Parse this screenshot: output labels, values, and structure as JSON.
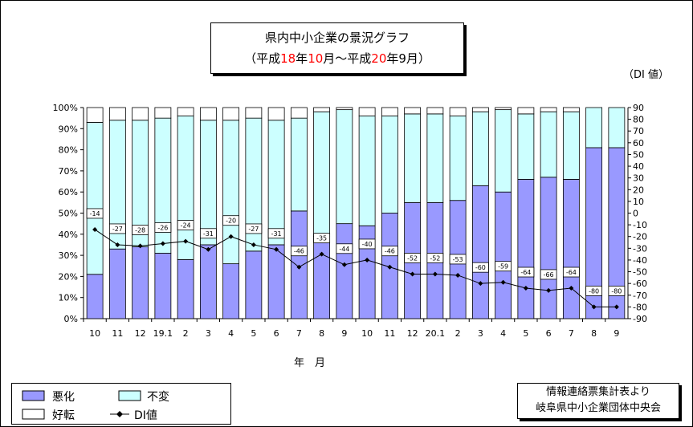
{
  "title": {
    "line1": "県内中小企業の景況グラフ",
    "line2_parts": [
      {
        "text": "（平成",
        "red": false
      },
      {
        "text": "18",
        "red": true
      },
      {
        "text": "年",
        "red": false
      },
      {
        "text": "10",
        "red": true
      },
      {
        "text": "月～平成",
        "red": false
      },
      {
        "text": "20",
        "red": true
      },
      {
        "text": "年9月）",
        "red": false
      }
    ]
  },
  "di_unit": "（DI 値）",
  "source": {
    "line1": "情報連絡票集計表より",
    "line2": "岐阜県中小企業団体中央会"
  },
  "legend": {
    "bad": "悪化",
    "same": "不変",
    "good": "好転",
    "di": "DI値"
  },
  "colors": {
    "bad": "#9999ff",
    "same": "#ccffff",
    "good": "#ffffff",
    "di": "#000000"
  },
  "chart_data": {
    "type": "bar",
    "stacked": true,
    "xlabel": "年　月",
    "categories": [
      "10",
      "11",
      "12",
      "19.1",
      "2",
      "3",
      "4",
      "5",
      "6",
      "7",
      "8",
      "9",
      "10",
      "11",
      "12",
      "20.1",
      "2",
      "3",
      "4",
      "5",
      "6",
      "7",
      "8",
      "9"
    ],
    "series": [
      {
        "name": "悪化",
        "values": [
          21,
          33,
          34,
          31,
          28,
          35,
          26,
          32,
          35,
          51,
          39,
          45,
          44,
          50,
          55,
          55,
          56,
          63,
          60,
          66,
          67,
          66,
          81,
          81
        ]
      },
      {
        "name": "不変",
        "values": [
          72,
          61,
          60,
          64,
          68,
          59,
          68,
          63,
          59,
          44,
          59,
          54,
          52,
          46,
          42,
          42,
          40,
          35,
          39,
          31,
          31,
          32,
          19,
          19
        ]
      },
      {
        "name": "好転",
        "values": [
          7,
          6,
          6,
          5,
          4,
          6,
          6,
          5,
          6,
          5,
          2,
          1,
          4,
          4,
          3,
          3,
          4,
          2,
          1,
          3,
          2,
          2,
          0,
          0
        ]
      },
      {
        "name": "DI値",
        "axis": "right",
        "values": [
          -14,
          -27,
          -28,
          -26,
          -24,
          -31,
          -20,
          -27,
          -31,
          -46,
          -35,
          -44,
          -40,
          -46,
          -52,
          -52,
          -53,
          -60,
          -59,
          -64,
          -66,
          -64,
          -80,
          -80
        ]
      }
    ],
    "left_axis": {
      "ylim": [
        0,
        100
      ],
      "tick_labels": [
        "0%",
        "10%",
        "20%",
        "30%",
        "40%",
        "50%",
        "60%",
        "70%",
        "80%",
        "90%",
        "100%"
      ]
    },
    "right_axis": {
      "ylim": [
        -90,
        90
      ],
      "step": 10
    },
    "grid": false
  }
}
